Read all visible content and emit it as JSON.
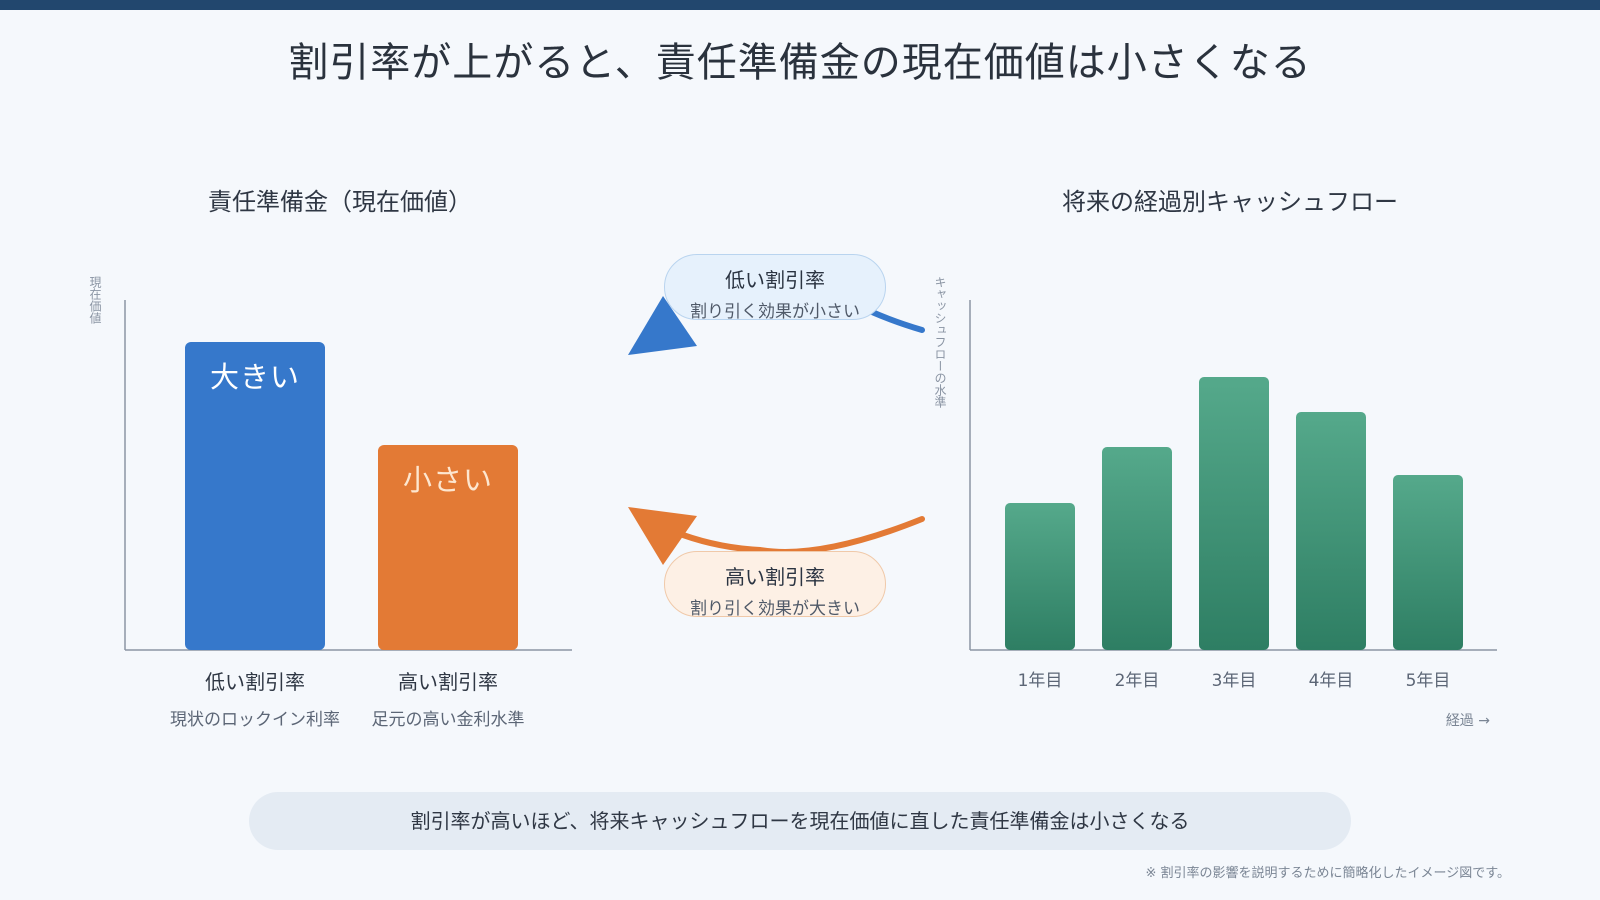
{
  "title": "割引率が上がると、責任準備金の現在価値は小さくなる",
  "colors": {
    "topbar": "#22476e",
    "low_rate": "#3678cb",
    "high_rate": "#e37a35",
    "cashflow": "#3b9275"
  },
  "left_panel": {
    "title": "責任準備金（現在価値）",
    "ylabel": "現在価値",
    "bars": [
      {
        "label": "大きい",
        "category": "低い割引率",
        "sub": "現状のロックイン利率"
      },
      {
        "label": "小さい",
        "category": "高い割引率",
        "sub": "足元の高い金利水準"
      }
    ]
  },
  "middle": {
    "low": {
      "title": "低い割引率",
      "sub": "割り引く効果が小さい"
    },
    "high": {
      "title": "高い割引率",
      "sub": "割り引く効果が大きい"
    }
  },
  "chart_data": {
    "type": "bar",
    "title": "将来の経過別キャッシュフロー",
    "ylabel": "キャッシュフローの水準",
    "xlabel": "経過 →",
    "categories": [
      "1年目",
      "2年目",
      "3年目",
      "4年目",
      "5年目"
    ],
    "values": [
      42,
      58,
      78,
      68,
      50
    ],
    "ylim": [
      0,
      100
    ],
    "grid": false
  },
  "summary": "割引率が高いほど、将来キャッシュフローを現在価値に直した責任準備金は小さくなる",
  "footnote": "※ 割引率の影響を説明するために簡略化したイメージ図です。"
}
